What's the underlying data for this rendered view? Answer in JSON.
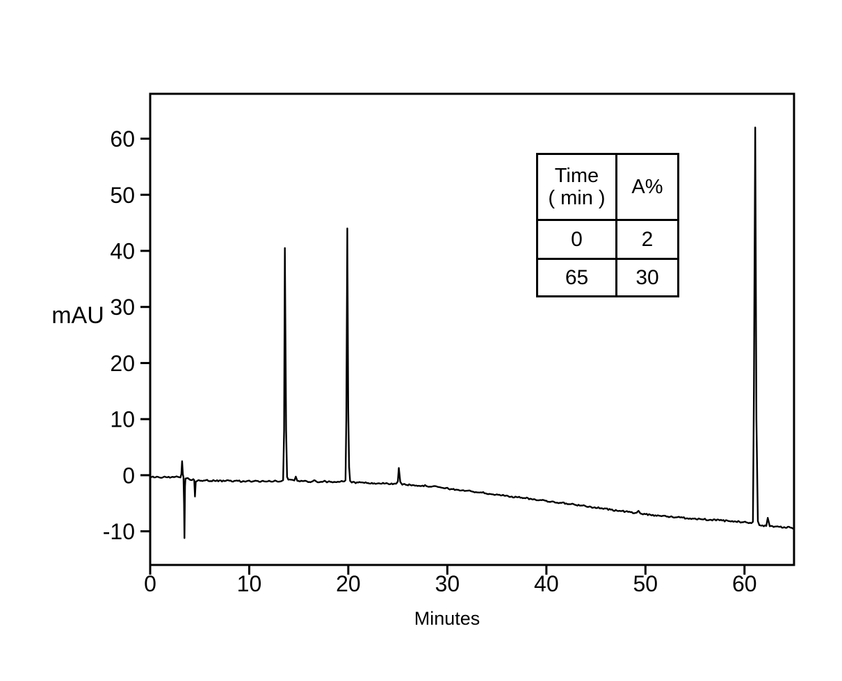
{
  "figure": {
    "background": "#ffffff",
    "line_color": "#000000",
    "text_color": "#000000"
  },
  "chart_data": {
    "type": "line",
    "title": "",
    "xlabel": "Minutes",
    "ylabel": "mAU",
    "legend": "none",
    "grid": false,
    "xlim": [
      0,
      65
    ],
    "ylim": [
      -16,
      68
    ],
    "x_ticks": [
      0,
      10,
      20,
      30,
      40,
      50,
      60
    ],
    "y_ticks": [
      -10,
      0,
      10,
      20,
      30,
      40,
      50,
      60
    ],
    "series": [
      {
        "name": "chromatogram-trace",
        "color": "#000000",
        "points": [
          [
            0,
            -0.3
          ],
          [
            0.4,
            -0.4
          ],
          [
            0.8,
            -0.3
          ],
          [
            1.2,
            -0.45
          ],
          [
            1.6,
            -0.35
          ],
          [
            2.0,
            -0.45
          ],
          [
            2.4,
            -0.35
          ],
          [
            2.8,
            -0.3
          ],
          [
            3.05,
            -0.4
          ],
          [
            3.15,
            0.2
          ],
          [
            3.22,
            2.5
          ],
          [
            3.3,
            0.2
          ],
          [
            3.36,
            -0.4
          ],
          [
            3.42,
            -5.0
          ],
          [
            3.46,
            -11.2
          ],
          [
            3.52,
            -2.0
          ],
          [
            3.56,
            -0.6
          ],
          [
            3.8,
            -0.5
          ],
          [
            4.0,
            -0.8
          ],
          [
            4.35,
            -0.7
          ],
          [
            4.45,
            -0.9
          ],
          [
            4.52,
            -3.8
          ],
          [
            4.6,
            -1.2
          ],
          [
            4.8,
            -0.95
          ],
          [
            5.5,
            -0.95
          ],
          [
            6.5,
            -1.0
          ],
          [
            7.5,
            -1.05
          ],
          [
            8.5,
            -1.0
          ],
          [
            9.5,
            -1.1
          ],
          [
            10.5,
            -1.05
          ],
          [
            11.5,
            -1.1
          ],
          [
            12.5,
            -1.05
          ],
          [
            13.2,
            -1.1
          ],
          [
            13.42,
            -0.9
          ],
          [
            13.52,
            8.0
          ],
          [
            13.6,
            40.5
          ],
          [
            13.72,
            8.0
          ],
          [
            13.82,
            -0.3
          ],
          [
            13.95,
            -0.8
          ],
          [
            14.55,
            -0.95
          ],
          [
            14.7,
            -0.25
          ],
          [
            14.85,
            -1.0
          ],
          [
            15.5,
            -1.05
          ],
          [
            16.3,
            -1.15
          ],
          [
            16.6,
            -0.9
          ],
          [
            16.8,
            -1.15
          ],
          [
            17.5,
            -1.1
          ],
          [
            18.3,
            -1.2
          ],
          [
            19.2,
            -1.15
          ],
          [
            19.6,
            -1.1
          ],
          [
            19.72,
            -0.9
          ],
          [
            19.8,
            10.0
          ],
          [
            19.9,
            44.0
          ],
          [
            19.99,
            12.0
          ],
          [
            20.08,
            1.5
          ],
          [
            20.18,
            -1.0
          ],
          [
            20.35,
            -1.3
          ],
          [
            21,
            -1.3
          ],
          [
            22,
            -1.4
          ],
          [
            23,
            -1.45
          ],
          [
            24,
            -1.5
          ],
          [
            24.85,
            -1.5
          ],
          [
            25.0,
            -1.1
          ],
          [
            25.1,
            1.3
          ],
          [
            25.25,
            -1.2
          ],
          [
            25.45,
            -1.7
          ],
          [
            26.5,
            -1.75
          ],
          [
            27.5,
            -1.85
          ],
          [
            28.5,
            -2.0
          ],
          [
            29.5,
            -2.25
          ],
          [
            30.5,
            -2.5
          ],
          [
            31.5,
            -2.7
          ],
          [
            32.5,
            -2.9
          ],
          [
            33.5,
            -3.1
          ],
          [
            34.5,
            -3.4
          ],
          [
            35.5,
            -3.6
          ],
          [
            36.5,
            -3.8
          ],
          [
            37.5,
            -4.0
          ],
          [
            38.5,
            -4.25
          ],
          [
            39.5,
            -4.45
          ],
          [
            40.5,
            -4.7
          ],
          [
            41.5,
            -4.95
          ],
          [
            42.5,
            -5.15
          ],
          [
            43.5,
            -5.4
          ],
          [
            44.5,
            -5.65
          ],
          [
            45.5,
            -5.9
          ],
          [
            46.5,
            -6.15
          ],
          [
            47.5,
            -6.4
          ],
          [
            48.5,
            -6.6
          ],
          [
            49.1,
            -6.7
          ],
          [
            49.3,
            -6.35
          ],
          [
            49.5,
            -6.85
          ],
          [
            50.5,
            -7.05
          ],
          [
            51.5,
            -7.25
          ],
          [
            52.5,
            -7.4
          ],
          [
            53.5,
            -7.55
          ],
          [
            54.5,
            -7.7
          ],
          [
            55.5,
            -7.8
          ],
          [
            56.5,
            -7.95
          ],
          [
            57.5,
            -8.05
          ],
          [
            58.5,
            -8.2
          ],
          [
            59.5,
            -8.3
          ],
          [
            60.3,
            -8.45
          ],
          [
            60.7,
            -8.55
          ],
          [
            60.85,
            -8.3
          ],
          [
            60.95,
            15.0
          ],
          [
            61.08,
            62.0
          ],
          [
            61.2,
            10.0
          ],
          [
            61.35,
            -8.2
          ],
          [
            61.5,
            -8.9
          ],
          [
            61.7,
            -9.0
          ],
          [
            62.2,
            -9.05
          ],
          [
            62.35,
            -7.6
          ],
          [
            62.55,
            -9.1
          ],
          [
            63.2,
            -9.15
          ],
          [
            64.0,
            -9.25
          ],
          [
            65,
            -9.4
          ]
        ]
      }
    ],
    "peaks": [
      {
        "time_min": 3.4,
        "mAU": -11.2
      },
      {
        "time_min": 13.6,
        "mAU": 40.5
      },
      {
        "time_min": 19.9,
        "mAU": 44.0
      },
      {
        "time_min": 25.1,
        "mAU": 1.3
      },
      {
        "time_min": 61.1,
        "mAU": 62.0
      }
    ]
  },
  "inset_table": {
    "col1_header_line1": "Time",
    "col1_header_line2": "( min )",
    "col2_header": "A%",
    "rows": [
      [
        "0",
        "2"
      ],
      [
        "65",
        "30"
      ]
    ]
  }
}
